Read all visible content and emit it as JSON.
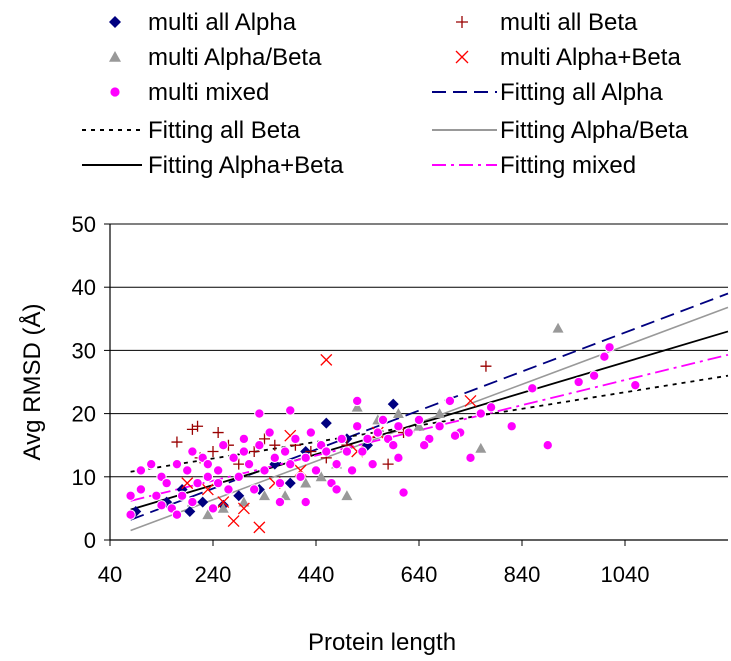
{
  "chart_data": {
    "type": "scatter",
    "title": "",
    "xlabel": "Protein length",
    "ylabel": "Avg RMSD (Å)",
    "xlim": [
      40,
      1240
    ],
    "ylim": [
      0,
      50
    ],
    "x_ticks": [
      40,
      240,
      440,
      640,
      840,
      1040
    ],
    "y_ticks": [
      0,
      10,
      20,
      30,
      40,
      50
    ],
    "grid": "horizontal",
    "legend_position": "top",
    "series": [
      {
        "name": "multi all Alpha",
        "marker": "diamond",
        "color": "#000080",
        "points": [
          [
            90,
            4.5
          ],
          [
            150,
            6
          ],
          [
            180,
            8
          ],
          [
            195,
            4.5
          ],
          [
            220,
            6
          ],
          [
            260,
            5.5
          ],
          [
            290,
            7
          ],
          [
            330,
            8
          ],
          [
            360,
            12
          ],
          [
            390,
            9
          ],
          [
            420,
            14
          ],
          [
            460,
            18.5
          ],
          [
            500,
            16
          ],
          [
            540,
            15
          ],
          [
            590,
            21.5
          ]
        ]
      },
      {
        "name": "multi all Beta",
        "marker": "plus",
        "color": "#990000",
        "points": [
          [
            170,
            15.5
          ],
          [
            200,
            17.5
          ],
          [
            210,
            18
          ],
          [
            215,
            13
          ],
          [
            240,
            14
          ],
          [
            250,
            17
          ],
          [
            270,
            15
          ],
          [
            290,
            12
          ],
          [
            320,
            14
          ],
          [
            340,
            16
          ],
          [
            360,
            15
          ],
          [
            400,
            15
          ],
          [
            430,
            14
          ],
          [
            460,
            13
          ],
          [
            500,
            15
          ],
          [
            580,
            12
          ],
          [
            610,
            17
          ],
          [
            770,
            27.5
          ]
        ]
      },
      {
        "name": "multi Alpha/Beta",
        "marker": "triangle",
        "color": "#999999",
        "points": [
          [
            200,
            6
          ],
          [
            230,
            4
          ],
          [
            260,
            5
          ],
          [
            300,
            6
          ],
          [
            340,
            7
          ],
          [
            380,
            7
          ],
          [
            420,
            9
          ],
          [
            450,
            10
          ],
          [
            480,
            12
          ],
          [
            500,
            7
          ],
          [
            520,
            21
          ],
          [
            560,
            19
          ],
          [
            600,
            20
          ],
          [
            640,
            18
          ],
          [
            680,
            20
          ],
          [
            760,
            14.5
          ],
          [
            910,
            33.5
          ]
        ]
      },
      {
        "name": "multi Alpha+Beta",
        "marker": "x",
        "color": "#ff0000",
        "points": [
          [
            190,
            9
          ],
          [
            230,
            8
          ],
          [
            260,
            6
          ],
          [
            280,
            3
          ],
          [
            300,
            5
          ],
          [
            330,
            2
          ],
          [
            360,
            9
          ],
          [
            390,
            16.5
          ],
          [
            410,
            11
          ],
          [
            460,
            28.5
          ],
          [
            520,
            14
          ],
          [
            560,
            17
          ],
          [
            740,
            22
          ]
        ]
      },
      {
        "name": "multi mixed",
        "marker": "circle",
        "color": "#ff00ff",
        "points": [
          [
            80,
            4
          ],
          [
            80,
            7
          ],
          [
            100,
            8
          ],
          [
            120,
            12
          ],
          [
            130,
            7
          ],
          [
            140,
            10
          ],
          [
            150,
            9
          ],
          [
            160,
            5
          ],
          [
            170,
            12
          ],
          [
            180,
            7
          ],
          [
            190,
            11
          ],
          [
            200,
            14
          ],
          [
            200,
            6
          ],
          [
            210,
            9
          ],
          [
            220,
            13
          ],
          [
            230,
            10
          ],
          [
            240,
            5
          ],
          [
            250,
            11
          ],
          [
            260,
            15
          ],
          [
            270,
            8
          ],
          [
            280,
            13
          ],
          [
            290,
            10
          ],
          [
            300,
            14
          ],
          [
            310,
            12
          ],
          [
            320,
            8
          ],
          [
            330,
            15
          ],
          [
            340,
            11
          ],
          [
            350,
            17
          ],
          [
            360,
            13
          ],
          [
            370,
            9
          ],
          [
            380,
            14
          ],
          [
            390,
            12
          ],
          [
            400,
            16
          ],
          [
            410,
            10
          ],
          [
            420,
            13
          ],
          [
            430,
            17
          ],
          [
            440,
            11
          ],
          [
            450,
            15
          ],
          [
            460,
            14
          ],
          [
            470,
            9
          ],
          [
            480,
            12
          ],
          [
            490,
            16
          ],
          [
            500,
            14
          ],
          [
            510,
            11
          ],
          [
            520,
            18
          ],
          [
            530,
            14
          ],
          [
            540,
            16
          ],
          [
            550,
            12
          ],
          [
            560,
            17
          ],
          [
            570,
            19
          ],
          [
            580,
            16
          ],
          [
            590,
            15
          ],
          [
            600,
            18
          ],
          [
            610,
            7.5
          ],
          [
            620,
            17
          ],
          [
            640,
            19
          ],
          [
            660,
            16
          ],
          [
            680,
            18
          ],
          [
            700,
            22
          ],
          [
            720,
            17
          ],
          [
            740,
            13
          ],
          [
            760,
            20
          ],
          [
            780,
            21
          ],
          [
            820,
            18
          ],
          [
            860,
            24
          ],
          [
            890,
            15
          ],
          [
            950,
            25
          ],
          [
            980,
            26
          ],
          [
            1000,
            29
          ],
          [
            1010,
            30.5
          ],
          [
            1060,
            24.5
          ],
          [
            330,
            20
          ],
          [
            390,
            20.5
          ],
          [
            520,
            22
          ],
          [
            250,
            9
          ],
          [
            300,
            16
          ],
          [
            170,
            4
          ],
          [
            230,
            12
          ],
          [
            370,
            6
          ],
          [
            420,
            6
          ],
          [
            140,
            5.5
          ],
          [
            100,
            11
          ],
          [
            480,
            8
          ],
          [
            600,
            13
          ],
          [
            650,
            15
          ],
          [
            710,
            16.5
          ]
        ]
      }
    ],
    "fits": [
      {
        "name": "Fitting all Alpha",
        "style": "dashed",
        "color": "#000080",
        "x": [
          80,
          1240
        ],
        "y": [
          3.2,
          39
        ]
      },
      {
        "name": "Fitting all Beta",
        "style": "dotted",
        "color": "#000000",
        "x": [
          80,
          1240
        ],
        "y": [
          10.8,
          26
        ]
      },
      {
        "name": "Fitting Alpha/Beta",
        "style": "solid",
        "color": "#999999",
        "x": [
          80,
          1240
        ],
        "y": [
          1.5,
          36.8
        ]
      },
      {
        "name": "Fitting Alpha+Beta",
        "style": "solid",
        "color": "#000000",
        "x": [
          80,
          1240
        ],
        "y": [
          4.8,
          33
        ]
      },
      {
        "name": "Fitting mixed",
        "style": "dashdot",
        "color": "#ff00ff",
        "x": [
          80,
          1240
        ],
        "y": [
          6.2,
          29.3
        ]
      }
    ]
  },
  "legend": {
    "items": [
      {
        "label": "multi all Alpha",
        "kind": "marker",
        "marker": "diamond",
        "color": "#000080"
      },
      {
        "label": "multi all Beta",
        "kind": "marker",
        "marker": "plus",
        "color": "#990000"
      },
      {
        "label": "multi Alpha/Beta",
        "kind": "marker",
        "marker": "triangle",
        "color": "#999999"
      },
      {
        "label": "multi Alpha+Beta",
        "kind": "marker",
        "marker": "x",
        "color": "#ff0000"
      },
      {
        "label": "multi mixed",
        "kind": "marker",
        "marker": "circle",
        "color": "#ff00ff"
      },
      {
        "label": "Fitting all Alpha",
        "kind": "line",
        "style": "dashed",
        "color": "#000080"
      },
      {
        "label": "Fitting all Beta",
        "kind": "line",
        "style": "dotted",
        "color": "#000000"
      },
      {
        "label": "Fitting Alpha/Beta",
        "kind": "line",
        "style": "solid",
        "color": "#999999"
      },
      {
        "label": "Fitting Alpha+Beta",
        "kind": "line",
        "style": "solid",
        "color": "#000000"
      },
      {
        "label": "Fitting mixed",
        "kind": "line",
        "style": "dashdot",
        "color": "#ff00ff"
      }
    ]
  }
}
